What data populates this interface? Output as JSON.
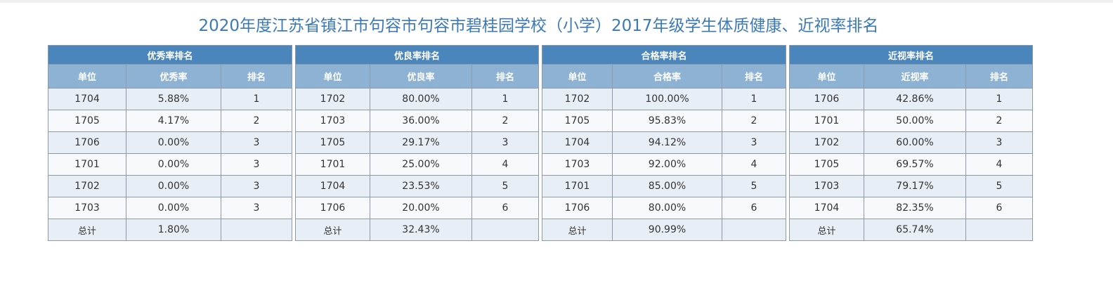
{
  "page_title": "2020年度江苏省镇江市句容市句容市碧桂园学校（小学）2017年级学生体质健康、近视率排名",
  "tables": [
    {
      "caption": "优秀率排名",
      "headers": [
        "单位",
        "优秀率",
        "排名"
      ],
      "rows": [
        [
          "1704",
          "5.88%",
          "1"
        ],
        [
          "1705",
          "4.17%",
          "2"
        ],
        [
          "1706",
          "0.00%",
          "3"
        ],
        [
          "1701",
          "0.00%",
          "3"
        ],
        [
          "1702",
          "0.00%",
          "3"
        ],
        [
          "1703",
          "0.00%",
          "3"
        ]
      ],
      "total": [
        "总计",
        "1.80%",
        ""
      ]
    },
    {
      "caption": "优良率排名",
      "headers": [
        "单位",
        "优良率",
        "排名"
      ],
      "rows": [
        [
          "1702",
          "80.00%",
          "1"
        ],
        [
          "1703",
          "36.00%",
          "2"
        ],
        [
          "1705",
          "29.17%",
          "3"
        ],
        [
          "1701",
          "25.00%",
          "4"
        ],
        [
          "1704",
          "23.53%",
          "5"
        ],
        [
          "1706",
          "20.00%",
          "6"
        ]
      ],
      "total": [
        "总计",
        "32.43%",
        ""
      ]
    },
    {
      "caption": "合格率排名",
      "headers": [
        "单位",
        "合格率",
        "排名"
      ],
      "rows": [
        [
          "1702",
          "100.00%",
          "1"
        ],
        [
          "1705",
          "95.83%",
          "2"
        ],
        [
          "1704",
          "94.12%",
          "3"
        ],
        [
          "1703",
          "92.00%",
          "4"
        ],
        [
          "1701",
          "85.00%",
          "5"
        ],
        [
          "1706",
          "80.00%",
          "6"
        ]
      ],
      "total": [
        "总计",
        "90.99%",
        ""
      ]
    },
    {
      "caption": "近视率排名",
      "headers": [
        "单位",
        "近视率",
        "排名"
      ],
      "rows": [
        [
          "1706",
          "42.86%",
          "1"
        ],
        [
          "1701",
          "50.00%",
          "2"
        ],
        [
          "1702",
          "60.00%",
          "3"
        ],
        [
          "1705",
          "69.57%",
          "4"
        ],
        [
          "1703",
          "79.17%",
          "5"
        ],
        [
          "1704",
          "82.35%",
          "6"
        ]
      ],
      "total": [
        "总计",
        "65.74%",
        ""
      ]
    }
  ],
  "colors": {
    "title": "#3c7ab6",
    "caption_bg": "#4a86bc",
    "header_bg": "#8db2d4",
    "row_odd": "#e8eef5",
    "row_even": "#f7f9fc",
    "border": "#8e9aa8"
  }
}
